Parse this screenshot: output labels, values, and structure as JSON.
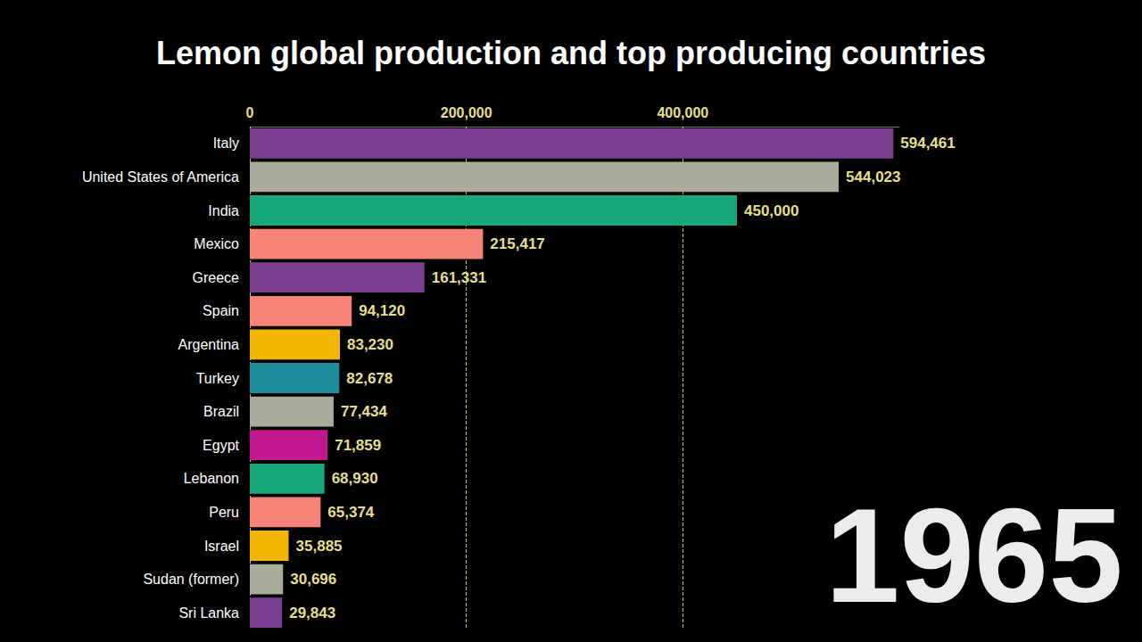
{
  "chart_data": {
    "type": "bar",
    "title": "Lemon global production and top producing countries",
    "annotation": "1965",
    "orientation": "horizontal",
    "categories": [
      "Italy",
      "United States of America",
      "India",
      "Mexico",
      "Greece",
      "Spain",
      "Argentina",
      "Turkey",
      "Brazil",
      "Egypt",
      "Lebanon",
      "Peru",
      "Israel",
      "Sudan (former)",
      "Sri Lanka"
    ],
    "values": [
      594461,
      544023,
      450000,
      215417,
      161331,
      94120,
      83230,
      82678,
      77434,
      71859,
      68930,
      65374,
      35885,
      30696,
      29843
    ],
    "value_labels": [
      "594,461",
      "544,023",
      "450,000",
      "215,417",
      "161,331",
      "94,120",
      "83,230",
      "82,678",
      "77,434",
      "71,859",
      "68,930",
      "65,374",
      "35,885",
      "30,696",
      "29,843"
    ],
    "colors": [
      "#7b3f8f",
      "#a9ab9b",
      "#17a77a",
      "#f88379",
      "#7b3f8f",
      "#f88379",
      "#f2b705",
      "#1d8a99",
      "#a9ab9b",
      "#c2188f",
      "#17a77a",
      "#f88379",
      "#f2b705",
      "#a9ab9b",
      "#7b3f8f"
    ],
    "data_labels": true,
    "xlim": [
      0,
      600000
    ],
    "xticks": [
      0,
      {
        "value": 200000,
        "label": "200,000"
      },
      {
        "value": 400000,
        "label": "400,000"
      }
    ],
    "grid": true
  }
}
